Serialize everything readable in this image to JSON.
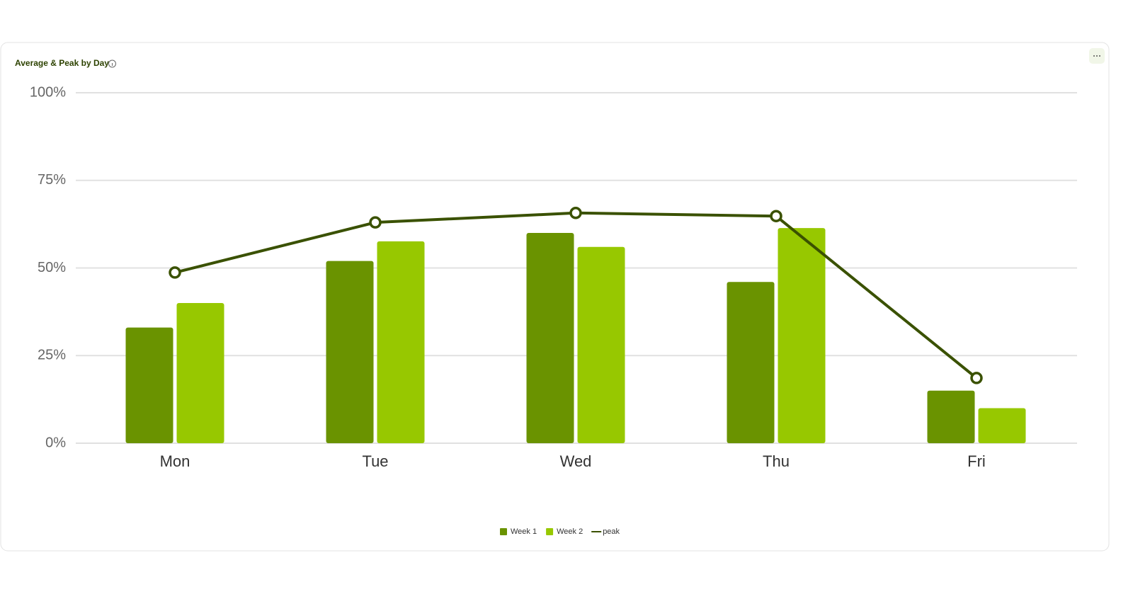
{
  "chart_data": {
    "type": "bar-line",
    "title": "Average & Peak by Day",
    "categories": [
      "Mon",
      "Tue",
      "Wed",
      "Thu",
      "Fri"
    ],
    "series": [
      {
        "name": "Week 1",
        "type": "bar",
        "color": "#6a9300",
        "values": [
          33,
          52,
          60,
          46,
          15
        ]
      },
      {
        "name": "Week 2",
        "type": "bar",
        "color": "#97c800",
        "values": [
          40,
          57.6,
          56,
          61.4,
          10
        ]
      },
      {
        "name": "peak",
        "type": "line",
        "color": "#3a5100",
        "values": [
          48.7,
          63,
          65.7,
          64.8,
          18.6
        ]
      }
    ],
    "ylim": [
      0,
      100
    ],
    "yticks": [
      {
        "value": 0,
        "label": "0%"
      },
      {
        "value": 25,
        "label": "25%"
      },
      {
        "value": 50,
        "label": "50%"
      },
      {
        "value": 75,
        "label": "75%"
      },
      {
        "value": 100,
        "label": "100%"
      }
    ],
    "grid": true,
    "legend": "bottom"
  }
}
